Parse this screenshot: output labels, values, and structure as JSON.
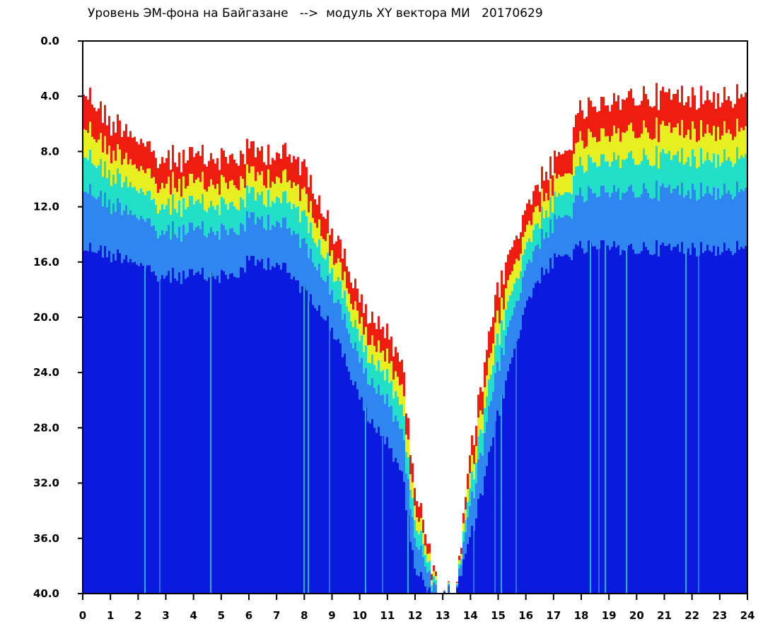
{
  "chart_data": {
    "type": "heatmap",
    "title": "Уровень ЭМ-фона на Байгазане   -->  модуль XY вектора МИ   20170629",
    "xlabel": "",
    "ylabel": "",
    "xlim": [
      0,
      24
    ],
    "ylim": [
      0,
      40
    ],
    "y_inverted": true,
    "x_ticks": [
      "0",
      "1",
      "2",
      "3",
      "4",
      "5",
      "6",
      "7",
      "8",
      "9",
      "10",
      "11",
      "12",
      "13",
      "14",
      "15",
      "16",
      "17",
      "18",
      "19",
      "20",
      "21",
      "22",
      "23",
      "24"
    ],
    "y_ticks": [
      "0.0",
      "4.0",
      "8.0",
      "12.0",
      "16.0",
      "20.0",
      "24.0",
      "28.0",
      "32.0",
      "36.0",
      "40.0"
    ],
    "grid": false,
    "colors": {
      "low": "#0a1adf",
      "low_mid": "#2f86f0",
      "mid": "#22e0c8",
      "mid_high": "#e8ef20",
      "high": "#ef1c10"
    },
    "envelope": {
      "hours": [
        0,
        0.5,
        1,
        1.5,
        2,
        2.5,
        3,
        3.5,
        4,
        4.5,
        5,
        5.5,
        6,
        6.5,
        7,
        7.5,
        8,
        8.5,
        9,
        9.5,
        10,
        10.5,
        11,
        11.5,
        12,
        12.5,
        13,
        13.5,
        14,
        14.5,
        15,
        15.5,
        16,
        16.5,
        17,
        17.5,
        18,
        18.5,
        19,
        19.5,
        20,
        20.5,
        21,
        21.5,
        22,
        22.5,
        23,
        23.5,
        24
      ],
      "red_top": [
        3.5,
        4.5,
        6.0,
        6.0,
        7.0,
        8.5,
        8.5,
        8.5,
        8.5,
        8.5,
        8.5,
        8.5,
        8.0,
        8.0,
        8.0,
        8.5,
        9.0,
        11.0,
        14.0,
        15.5,
        19.0,
        20.5,
        21.0,
        23.0,
        32.0,
        37.0,
        40.0,
        40.0,
        30.0,
        24.0,
        18.0,
        15.0,
        12.0,
        10.0,
        9.0,
        8.0,
        5.0,
        5.0,
        5.0,
        4.0,
        4.0,
        4.0,
        4.0,
        4.0,
        4.0,
        4.0,
        4.0,
        4.0,
        4.0
      ],
      "blue_top": [
        15.0,
        15.0,
        15.5,
        15.5,
        16.0,
        17.0,
        17.0,
        17.0,
        17.0,
        17.0,
        17.0,
        17.0,
        16.0,
        16.0,
        16.0,
        17.0,
        18.0,
        19.0,
        21.0,
        23.0,
        26.0,
        28.0,
        29.0,
        31.0,
        38.0,
        40.0,
        40.0,
        40.0,
        36.0,
        32.0,
        27.0,
        23.0,
        19.0,
        17.0,
        16.0,
        15.5,
        15.0,
        15.0,
        15.0,
        15.0,
        15.0,
        15.0,
        15.0,
        15.0,
        15.0,
        15.0,
        15.0,
        15.0,
        15.0
      ]
    }
  }
}
